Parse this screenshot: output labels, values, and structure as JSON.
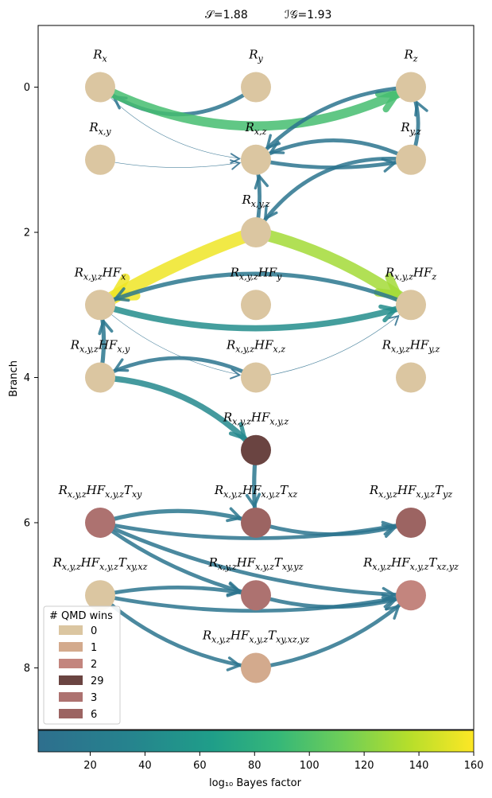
{
  "header": {
    "stat1": "𝒮=1.88",
    "stat2": "ℐ𝒢=1.93"
  },
  "axis": {
    "ylabel": "Branch",
    "yticks": [
      "0",
      "2",
      "4",
      "6",
      "8"
    ],
    "ylim": [
      -0.85,
      8.85
    ],
    "inverted": true
  },
  "colorbar": {
    "label": "log₁₀ Bayes factor",
    "ticks": [
      "20",
      "40",
      "60",
      "80",
      "100",
      "120",
      "140",
      "160"
    ],
    "range": [
      1,
      160
    ],
    "cmap": "viridis"
  },
  "legend": {
    "title": "# QMD wins",
    "items": [
      {
        "label": "0",
        "color": "#dbc6a1"
      },
      {
        "label": "1",
        "color": "#d3aa8d"
      },
      {
        "label": "2",
        "color": "#c3857e"
      },
      {
        "label": "29",
        "color": "#6a4441"
      },
      {
        "label": "3",
        "color": "#ad7270"
      },
      {
        "label": "6",
        "color": "#9c6462"
      }
    ]
  },
  "nodes": [
    {
      "id": "Rx",
      "label": "R_x",
      "branch": 0,
      "col": 0,
      "color": "#dbc6a1"
    },
    {
      "id": "Ry",
      "label": "R_y",
      "branch": 0,
      "col": 1,
      "color": "#dbc6a1"
    },
    {
      "id": "Rz",
      "label": "R_z",
      "branch": 0,
      "col": 2,
      "color": "#dbc6a1"
    },
    {
      "id": "Rxy",
      "label": "R_{x,y}",
      "branch": 1,
      "col": 0,
      "color": "#dbc6a1"
    },
    {
      "id": "Rxz",
      "label": "R_{x,z}",
      "branch": 1,
      "col": 1,
      "color": "#dbc6a1"
    },
    {
      "id": "Ryz",
      "label": "R_{y,z}",
      "branch": 1,
      "col": 2,
      "color": "#dbc6a1"
    },
    {
      "id": "Rxyz",
      "label": "R_{x,y,z}",
      "branch": 2,
      "col": 1,
      "color": "#dbc6a1"
    },
    {
      "id": "HFx",
      "label": "R_{x,y,z}HF_x",
      "branch": 3,
      "col": 0,
      "color": "#dbc6a1"
    },
    {
      "id": "HFy",
      "label": "R_{x,y,z}HF_y",
      "branch": 3,
      "col": 1,
      "color": "#dbc6a1"
    },
    {
      "id": "HFz",
      "label": "R_{x,y,z}HF_z",
      "branch": 3,
      "col": 2,
      "color": "#dbc6a1"
    },
    {
      "id": "HFxy",
      "label": "R_{x,y,z}HF_{x,y}",
      "branch": 4,
      "col": 0,
      "color": "#dbc6a1"
    },
    {
      "id": "HFxz",
      "label": "R_{x,y,z}HF_{x,z}",
      "branch": 4,
      "col": 1,
      "color": "#dbc6a1"
    },
    {
      "id": "HFyz",
      "label": "R_{x,y,z}HF_{y,z}",
      "branch": 4,
      "col": 2,
      "color": "#dbc6a1"
    },
    {
      "id": "HFxyz",
      "label": "R_{x,y,z}HF_{x,y,z}",
      "branch": 5,
      "col": 1,
      "color": "#6a4441"
    },
    {
      "id": "Txy",
      "label": "R_{x,y,z}HF_{x,y,z}T_{xy}",
      "branch": 6,
      "col": 0,
      "color": "#ad7270"
    },
    {
      "id": "Txz",
      "label": "R_{x,y,z}HF_{x,y,z}T_{xz}",
      "branch": 6,
      "col": 1,
      "color": "#9c6462"
    },
    {
      "id": "Tyz",
      "label": "R_{x,y,z}HF_{x,y,z}T_{yz}",
      "branch": 6,
      "col": 2,
      "color": "#9c6462"
    },
    {
      "id": "Txyxz",
      "label": "R_{x,y,z}HF_{x,y,z}T_{xy,xz}",
      "branch": 7,
      "col": 0,
      "color": "#dbc6a1"
    },
    {
      "id": "Txyyz",
      "label": "R_{x,y,z}HF_{x,y,z}T_{xy,yz}",
      "branch": 7,
      "col": 1,
      "color": "#ad7270"
    },
    {
      "id": "Txzyz",
      "label": "R_{x,y,z}HF_{x,y,z}T_{xz,yz}",
      "branch": 7,
      "col": 2,
      "color": "#c3857e"
    },
    {
      "id": "Tall",
      "label": "R_{x,y,z}HF_{x,y,z}T_{xy,xz,yz}",
      "branch": 8,
      "col": 1,
      "color": "#d3aa8d"
    }
  ],
  "edges": [
    {
      "from": "Ry",
      "to": "Rx",
      "bf": 10,
      "bend": -0.35
    },
    {
      "from": "Rx",
      "to": "Rz",
      "bf": 95,
      "bend": 0.25
    },
    {
      "from": "Rx",
      "to": "Rxz",
      "bf": 1,
      "bend": 0.2
    },
    {
      "from": "Rxy",
      "to": "Rxz",
      "bf": 1,
      "bend": 0.1
    },
    {
      "from": "Rz",
      "to": "Rxz",
      "bf": 10,
      "bend": 0.2
    },
    {
      "from": "Ryz",
      "to": "Rxz",
      "bf": 10,
      "bend": 0.25
    },
    {
      "from": "Rxz",
      "to": "Ryz",
      "bf": 10,
      "bend": 0.1
    },
    {
      "from": "Ryz",
      "to": "Rz",
      "bf": 10,
      "bend": 0.2
    },
    {
      "from": "Rxyz",
      "to": "Rxz",
      "bf": 10,
      "bend": 0.1
    },
    {
      "from": "Ryz",
      "to": "Rxyz",
      "bf": 10,
      "bend": 0.3
    },
    {
      "from": "Rxyz",
      "to": "HFx",
      "bf": 155,
      "bend": 0.05
    },
    {
      "from": "Rxyz",
      "to": "HFz",
      "bf": 130,
      "bend": -0.1
    },
    {
      "from": "HFx",
      "to": "HFz",
      "bf": 45,
      "bend": 0.15
    },
    {
      "from": "HFz",
      "to": "HFx",
      "bf": 15,
      "bend": 0.2
    },
    {
      "from": "HFxy",
      "to": "HFx",
      "bf": 15,
      "bend": 0.1
    },
    {
      "from": "HFx",
      "to": "HFxz",
      "bf": 1,
      "bend": 0.15
    },
    {
      "from": "HFxz",
      "to": "HFxy",
      "bf": 10,
      "bend": 0.25
    },
    {
      "from": "HFxy",
      "to": "HFxyz",
      "bf": 40,
      "bend": -0.2
    },
    {
      "from": "HFxz",
      "to": "HFz",
      "bf": 2,
      "bend": 0.15
    },
    {
      "from": "HFxyz",
      "to": "Txz",
      "bf": 15,
      "bend": 0.05
    },
    {
      "from": "Txy",
      "to": "Txz",
      "bf": 15,
      "bend": -0.15
    },
    {
      "from": "Txy",
      "to": "Tyz",
      "bf": 10,
      "bend": 0.1
    },
    {
      "from": "Txz",
      "to": "Tyz",
      "bf": 10,
      "bend": 0.15
    },
    {
      "from": "Txy",
      "to": "Txyyz",
      "bf": 10,
      "bend": 0.1
    },
    {
      "from": "Txy",
      "to": "Txzyz",
      "bf": 10,
      "bend": 0.1
    },
    {
      "from": "Txyxz",
      "to": "Txzyz",
      "bf": 10,
      "bend": 0.1
    },
    {
      "from": "Txyxz",
      "to": "Tall",
      "bf": 10,
      "bend": 0.15
    },
    {
      "from": "Tall",
      "to": "Txzyz",
      "bf": 10,
      "bend": 0.15
    },
    {
      "from": "Txyyz",
      "to": "Txzyz",
      "bf": 10,
      "bend": 0.15
    },
    {
      "from": "Txyxz",
      "to": "Txyyz",
      "bf": 10,
      "bend": -0.1
    }
  ]
}
